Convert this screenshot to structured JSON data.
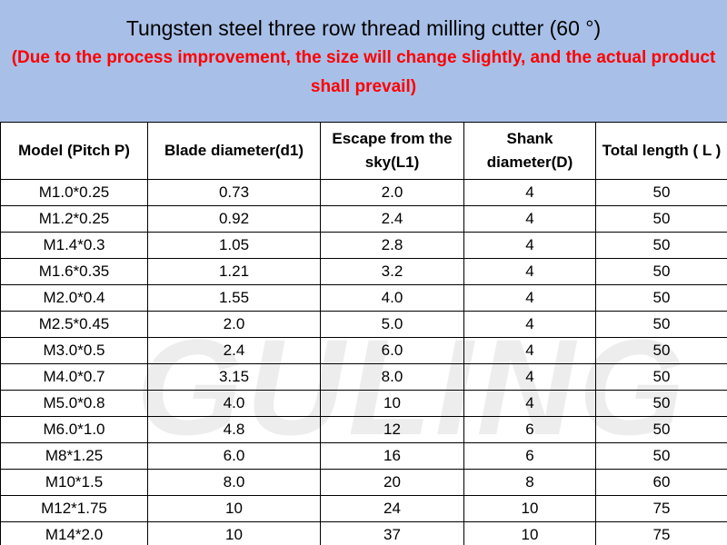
{
  "header": {
    "title": "Tungsten steel three row thread milling cutter (60 °)",
    "subtitle": "(Due to the process improvement, the size will change slightly, and the actual product shall prevail)"
  },
  "watermark": "GULING",
  "table": {
    "columns": [
      "Model (Pitch P)",
      "Blade diameter(d1)",
      "Escape from the sky(L1)",
      "Shank diameter(D)",
      "Total length ( L )"
    ],
    "rows": [
      [
        "M1.0*0.25",
        "0.73",
        "2.0",
        "4",
        "50"
      ],
      [
        "M1.2*0.25",
        "0.92",
        "2.4",
        "4",
        "50"
      ],
      [
        "M1.4*0.3",
        "1.05",
        "2.8",
        "4",
        "50"
      ],
      [
        "M1.6*0.35",
        "1.21",
        "3.2",
        "4",
        "50"
      ],
      [
        "M2.0*0.4",
        "1.55",
        "4.0",
        "4",
        "50"
      ],
      [
        "M2.5*0.45",
        "2.0",
        "5.0",
        "4",
        "50"
      ],
      [
        "M3.0*0.5",
        "2.4",
        "6.0",
        "4",
        "50"
      ],
      [
        "M4.0*0.7",
        "3.15",
        "8.0",
        "4",
        "50"
      ],
      [
        "M5.0*0.8",
        "4.0",
        "10",
        "4",
        "50"
      ],
      [
        "M6.0*1.0",
        "4.8",
        "12",
        "6",
        "50"
      ],
      [
        "M8*1.25",
        "6.0",
        "16",
        "6",
        "50"
      ],
      [
        "M10*1.5",
        "8.0",
        "20",
        "8",
        "60"
      ],
      [
        "M12*1.75",
        "10",
        "24",
        "10",
        "75"
      ],
      [
        "M14*2.0",
        "10",
        "37",
        "10",
        "75"
      ]
    ]
  }
}
